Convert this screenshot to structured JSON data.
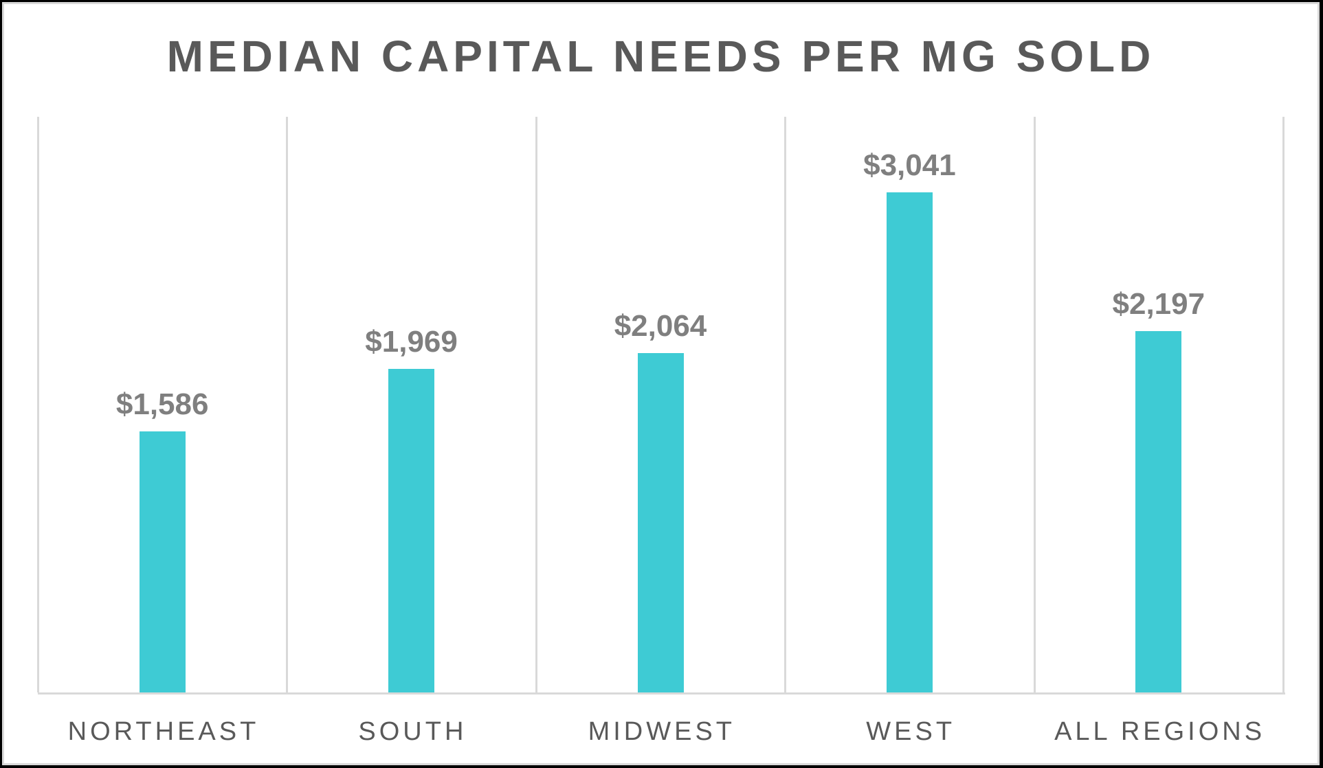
{
  "chart_data": {
    "type": "bar",
    "title": "MEDIAN CAPITAL NEEDS PER MG SOLD",
    "categories": [
      "NORTHEAST",
      "SOUTH",
      "MIDWEST",
      "WEST",
      "ALL REGIONS"
    ],
    "values": [
      1586,
      1969,
      2064,
      3041,
      2197
    ],
    "data_labels": [
      "$1,586",
      "$1,969",
      "$2,064",
      "$3,041",
      "$2,197"
    ],
    "xlabel": "",
    "ylabel": "",
    "ylim": [
      0,
      3500
    ],
    "grid": "vertical category separators",
    "legend": null,
    "colors": {
      "bar": "#3ecbd4",
      "gridline": "#d9d9d9",
      "title": "#595959",
      "data_label": "#7f7f7f",
      "category_label": "#595959"
    }
  }
}
